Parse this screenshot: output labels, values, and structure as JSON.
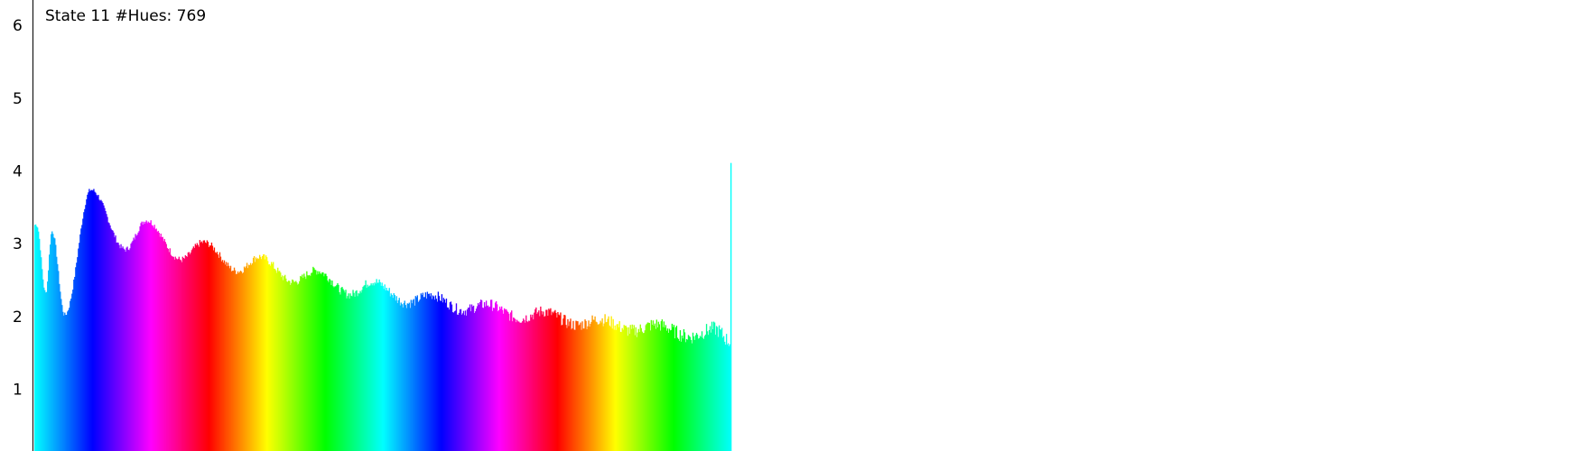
{
  "chart_data": {
    "type": "bar",
    "title": "State 11 #Hues: 769",
    "xlabel": "",
    "ylabel": "",
    "ylim": [
      0.15,
      6.35
    ],
    "yticks": [
      1,
      2,
      3,
      4,
      5,
      6
    ],
    "x_range": [
      0,
      769
    ],
    "hue_cycles": 2,
    "grid": false,
    "legend": "none",
    "peaks": [
      {
        "x": 2,
        "y": 3.26
      },
      {
        "x": 19,
        "y": 3.17
      },
      {
        "x": 62,
        "y": 3.74
      },
      {
        "x": 123,
        "y": 3.32
      },
      {
        "x": 186,
        "y": 3.02
      },
      {
        "x": 248,
        "y": 2.82
      },
      {
        "x": 310,
        "y": 2.63
      },
      {
        "x": 373,
        "y": 2.48
      },
      {
        "x": 436,
        "y": 2.3
      },
      {
        "x": 498,
        "y": 2.17
      },
      {
        "x": 561,
        "y": 2.07
      },
      {
        "x": 623,
        "y": 1.96
      },
      {
        "x": 685,
        "y": 1.89
      },
      {
        "x": 750,
        "y": 1.83
      }
    ],
    "valleys": [
      {
        "x": 12,
        "y": 2.32
      },
      {
        "x": 33,
        "y": 2.02
      },
      {
        "x": 100,
        "y": 2.92
      },
      {
        "x": 161,
        "y": 2.78
      },
      {
        "x": 224,
        "y": 2.62
      },
      {
        "x": 285,
        "y": 2.47
      },
      {
        "x": 348,
        "y": 2.3
      },
      {
        "x": 411,
        "y": 2.18
      },
      {
        "x": 473,
        "y": 2.08
      },
      {
        "x": 536,
        "y": 1.97
      },
      {
        "x": 598,
        "y": 1.88
      },
      {
        "x": 660,
        "y": 1.8
      },
      {
        "x": 723,
        "y": 1.72
      },
      {
        "x": 768,
        "y": 1.65
      }
    ],
    "final_spike": {
      "x": 768,
      "y": 4.11
    }
  }
}
